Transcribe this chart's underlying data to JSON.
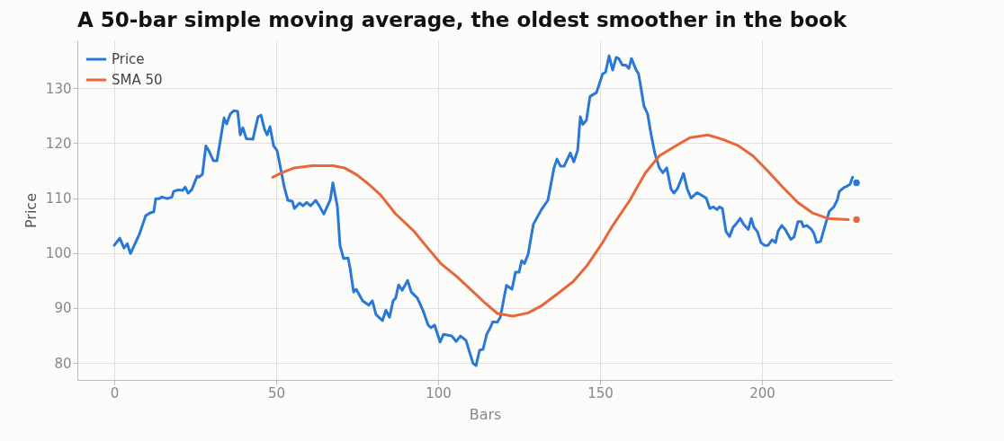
{
  "chart_data": {
    "type": "line",
    "title": "A 50-bar simple moving average, the oldest smoother in the book",
    "xlabel": "Bars",
    "ylabel": "Price",
    "xlim": [
      -11.4,
      240.3
    ],
    "ylim": [
      76.9,
      138.7
    ],
    "xticks": [
      0,
      50,
      100,
      150,
      200
    ],
    "yticks": [
      80,
      90,
      100,
      110,
      120,
      130
    ],
    "grid": true,
    "legend": "top left",
    "marker": "none",
    "line_style": "solid",
    "series": [
      {
        "name": "Price",
        "color": "#2a78d6",
        "x": [
          0,
          1.7,
          3,
          4,
          5,
          7.8,
          9.7,
          11.1,
          12.2,
          12.8,
          13.9,
          14.7,
          16.4,
          17.8,
          18.3,
          19.7,
          21.1,
          21.9,
          22.8,
          23.9,
          25.6,
          26.1,
          27.2,
          28.3,
          29.2,
          30.6,
          31.7,
          33.9,
          34.7,
          35.8,
          36.9,
          38.1,
          38.9,
          39.7,
          40.8,
          42.8,
          44.4,
          45.3,
          46.4,
          47.2,
          48.1,
          49.2,
          50.3,
          52.5,
          53.6,
          55,
          55.6,
          57.2,
          58.3,
          59.4,
          60.6,
          62.2,
          63.3,
          64.7,
          66.7,
          67.5,
          68.9,
          69.7,
          70.8,
          72.2,
          72.8,
          73.9,
          74.7,
          76.7,
          78.6,
          79.7,
          80.8,
          82.8,
          83.9,
          85,
          86.1,
          86.9,
          87.8,
          88.9,
          90.6,
          91.7,
          93.6,
          95.3,
          96.9,
          97.8,
          98.9,
          100.6,
          101.7,
          104.2,
          105.6,
          106.9,
          108.6,
          110.8,
          111.7,
          112.8,
          113.9,
          115,
          116.1,
          116.9,
          118.3,
          119.2,
          121.1,
          122.8,
          123.9,
          125,
          125.8,
          126.7,
          127.8,
          129.4,
          131.9,
          133.9,
          135.8,
          136.7,
          137.8,
          138.9,
          140.8,
          141.9,
          143.1,
          143.9,
          144.7,
          145.8,
          146.9,
          148.9,
          150.8,
          151.7,
          152.8,
          153.9,
          155,
          155.8,
          156.9,
          158,
          158.9,
          159.7,
          161.1,
          161.9,
          163.6,
          164.7,
          165.8,
          166.9,
          168.3,
          169.4,
          170.6,
          171.9,
          172.8,
          173.9,
          175.8,
          176.9,
          178.1,
          180,
          182.8,
          183.9,
          185,
          186.1,
          186.9,
          187.8,
          188.9,
          190,
          191.1,
          191.9,
          193.3,
          194.4,
          195.8,
          196.7,
          197.5,
          198.6,
          199.7,
          200.8,
          201.9,
          203.1,
          204.2,
          205,
          206.1,
          207.2,
          208.9,
          209.9,
          211.1,
          212.2,
          212.8,
          213.9,
          215.3,
          216.1,
          216.9,
          218.1,
          219.4,
          220.8,
          222.2,
          223.3,
          223.9,
          225.3,
          226.4,
          227.2,
          228
        ],
        "values": [
          101.4,
          102.7,
          100.9,
          101.7,
          99.9,
          103.5,
          106.8,
          107.3,
          107.5,
          109.9,
          109.9,
          110.2,
          109.9,
          110.2,
          111.2,
          111.5,
          111.4,
          112.0,
          110.9,
          111.5,
          114.0,
          113.8,
          114.3,
          119.5,
          118.6,
          116.8,
          116.8,
          124.6,
          123.5,
          125.3,
          125.9,
          125.8,
          121.5,
          122.8,
          120.8,
          120.7,
          124.8,
          125.1,
          122.5,
          121.5,
          123.0,
          119.5,
          118.6,
          112.0,
          109.6,
          109.4,
          108.1,
          109.1,
          108.6,
          109.2,
          108.6,
          109.6,
          108.6,
          107.1,
          109.7,
          112.8,
          108.4,
          101.4,
          99.0,
          99.1,
          97.3,
          92.9,
          93.4,
          91.3,
          90.5,
          91.3,
          88.8,
          87.7,
          89.6,
          88.3,
          91.3,
          91.8,
          94.2,
          93.2,
          95.0,
          92.9,
          91.8,
          89.6,
          86.9,
          86.4,
          86.9,
          83.8,
          85.2,
          84.9,
          83.9,
          84.9,
          84.1,
          79.9,
          79.5,
          82.3,
          82.5,
          85.2,
          86.4,
          87.5,
          87.4,
          88.3,
          94.1,
          93.4,
          96.5,
          96.5,
          98.6,
          98.1,
          99.8,
          105.2,
          107.9,
          109.6,
          115.5,
          117.1,
          115.8,
          115.8,
          118.2,
          116.6,
          118.7,
          124.8,
          123.4,
          124.2,
          128.5,
          129.2,
          132.6,
          132.9,
          135.9,
          133.3,
          135.6,
          135.4,
          134.2,
          134.2,
          133.6,
          135.4,
          133.4,
          132.6,
          126.7,
          125.3,
          121.5,
          118.2,
          115.5,
          114.6,
          115.5,
          111.7,
          110.9,
          111.7,
          114.5,
          111.7,
          110.0,
          111.0,
          110.0,
          108.1,
          108.4,
          107.9,
          108.4,
          108.1,
          103.9,
          103.0,
          104.7,
          105.2,
          106.3,
          105.2,
          104.3,
          106.3,
          104.7,
          103.9,
          101.9,
          101.4,
          101.4,
          102.4,
          101.9,
          104.0,
          105.0,
          104.3,
          102.5,
          102.9,
          105.7,
          105.7,
          104.8,
          105.0,
          104.3,
          103.5,
          101.9,
          102.1,
          104.8,
          107.6,
          108.4,
          109.7,
          111.2,
          111.9,
          112.2,
          112.5,
          113.8
        ]
      },
      {
        "name": "SMA 50",
        "color": "#e8663a",
        "x": [
          48.9,
          51.7,
          55.6,
          61.1,
          65.6,
          67.5,
          71.1,
          75,
          78.6,
          82.2,
          86.9,
          92.5,
          96.1,
          100.8,
          105.6,
          110,
          114.7,
          118.3,
          123.1,
          127.8,
          132.2,
          136.9,
          141.7,
          146.1,
          150.8,
          153.6,
          159.2,
          163.9,
          168.3,
          173.1,
          177.8,
          183.3,
          187.8,
          192.5,
          197.2,
          201.7,
          206.4,
          211.1,
          215.6,
          220.3,
          226.7
        ],
        "values": [
          113.8,
          114.6,
          115.5,
          115.9,
          115.9,
          115.9,
          115.5,
          114.2,
          112.5,
          110.6,
          107.1,
          104.0,
          101.4,
          98.1,
          95.8,
          93.4,
          90.8,
          89.0,
          88.5,
          89.1,
          90.5,
          92.6,
          94.8,
          97.8,
          101.9,
          104.7,
          109.6,
          114.5,
          117.7,
          119.4,
          121.0,
          121.5,
          120.7,
          119.6,
          117.7,
          115.0,
          112.0,
          109.2,
          107.3,
          106.3,
          106.1
        ]
      },
      {
        "type": "scatter",
        "marker": "circle",
        "color": "#2a78d6",
        "x": [
          229.2
        ],
        "values": [
          112.8
        ]
      },
      {
        "type": "scatter",
        "marker": "circle",
        "color": "#e8663a",
        "x": [
          229.2
        ],
        "values": [
          106.1
        ]
      }
    ]
  }
}
